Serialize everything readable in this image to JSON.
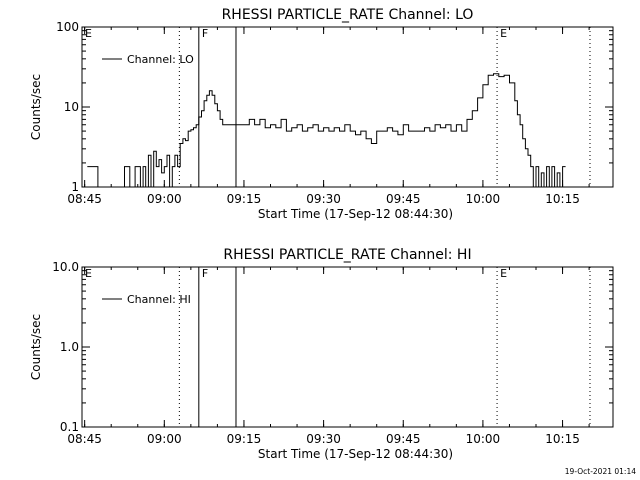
{
  "chart_data": [
    {
      "type": "line",
      "title": "RHESSI PARTICLE_RATE Channel: LO",
      "xlabel": "Start Time (17-Sep-12 08:44:30)",
      "ylabel": "Counts/sec",
      "yscale": "log",
      "ylim": [
        1,
        100
      ],
      "xlim": [
        "08:44:30",
        "10:24:30"
      ],
      "x_ticks": [
        "08:45",
        "09:00",
        "09:15",
        "09:30",
        "09:45",
        "10:00",
        "10:15"
      ],
      "y_ticks": [
        "1",
        "10",
        "100"
      ],
      "legend": "Channel: LO",
      "legend_position": "top-left",
      "markers": [
        {
          "label": "E",
          "time": "08:44:30",
          "style": "dotted"
        },
        {
          "label": "F",
          "time": "09:06:30",
          "style": "solid"
        },
        {
          "label": "",
          "time": "09:13:30",
          "style": "solid"
        },
        {
          "label": "",
          "time": "09:02:50",
          "style": "dotted"
        },
        {
          "label": "E",
          "time": "10:02:40",
          "style": "dotted"
        },
        {
          "label": "",
          "time": "10:20:10",
          "style": "dotted"
        }
      ],
      "x": [
        "08:45:30",
        "08:46:30",
        "08:47:30",
        "08:48:30",
        "08:50:00",
        "08:51:30",
        "08:52:30",
        "08:53:30",
        "08:54:30",
        "08:55:30",
        "08:56:00",
        "08:56:30",
        "08:57:00",
        "08:57:30",
        "08:58:00",
        "08:58:30",
        "08:59:00",
        "08:59:30",
        "09:00:00",
        "09:00:30",
        "09:01:00",
        "09:01:30",
        "09:02:00",
        "09:02:30",
        "09:03:00",
        "09:03:30",
        "09:04:00",
        "09:04:30",
        "09:05:00",
        "09:05:30",
        "09:06:00",
        "09:06:30",
        "09:07:00",
        "09:07:30",
        "09:08:00",
        "09:08:30",
        "09:09:00",
        "09:09:30",
        "09:10:00",
        "09:10:30",
        "09:11:00",
        "09:11:30",
        "09:12:00",
        "09:13:00",
        "09:14:00",
        "09:15:00",
        "09:16:00",
        "09:17:00",
        "09:18:00",
        "09:19:00",
        "09:20:00",
        "09:21:00",
        "09:22:00",
        "09:23:00",
        "09:24:00",
        "09:25:00",
        "09:26:00",
        "09:27:00",
        "09:28:00",
        "09:29:00",
        "09:30:00",
        "09:31:00",
        "09:32:00",
        "09:33:00",
        "09:34:00",
        "09:35:00",
        "09:36:00",
        "09:37:00",
        "09:38:00",
        "09:39:00",
        "09:40:00",
        "09:41:00",
        "09:42:00",
        "09:43:00",
        "09:44:00",
        "09:45:00",
        "09:46:00",
        "09:47:00",
        "09:48:00",
        "09:49:00",
        "09:50:00",
        "09:51:00",
        "09:52:00",
        "09:53:00",
        "09:54:00",
        "09:55:00",
        "09:56:00",
        "09:57:00",
        "09:58:00",
        "09:59:00",
        "10:00:00",
        "10:01:00",
        "10:02:00",
        "10:03:00",
        "10:04:00",
        "10:05:00",
        "10:06:00",
        "10:06:30",
        "10:07:00",
        "10:07:30",
        "10:08:00",
        "10:08:30",
        "10:09:00",
        "10:09:30",
        "10:10:00",
        "10:10:30",
        "10:11:00",
        "10:11:30",
        "10:12:00",
        "10:12:30",
        "10:13:00",
        "10:13:30",
        "10:14:00",
        "10:14:30",
        "10:15:00"
      ],
      "values": [
        1.8,
        1.8,
        1,
        1,
        1,
        1,
        1.8,
        1,
        1.8,
        1,
        1.8,
        1,
        2.5,
        1,
        2.8,
        1.8,
        2.2,
        1.5,
        1.8,
        2.5,
        1,
        1.8,
        2.5,
        1.8,
        3.5,
        4,
        3.8,
        5,
        5.2,
        5.5,
        6,
        7.5,
        9,
        12,
        14,
        16,
        14,
        11,
        9,
        7,
        6,
        6,
        6,
        6,
        6,
        6,
        7,
        6,
        7,
        5.5,
        6,
        5.5,
        7,
        5,
        5.5,
        6,
        5,
        5.5,
        6,
        5,
        5.5,
        5,
        5.5,
        5,
        6,
        5,
        4.5,
        5,
        4,
        3.5,
        5,
        5,
        5.5,
        5,
        4.5,
        6,
        5,
        5,
        5,
        5.5,
        5,
        6,
        5.5,
        6,
        5,
        6,
        5,
        7,
        9,
        13,
        19,
        25,
        26,
        24,
        25,
        20,
        12,
        8,
        6,
        4,
        3,
        2.5,
        1.8,
        1,
        1.8,
        1,
        1.5,
        1,
        1.8,
        1,
        1.8,
        1,
        1.5,
        1,
        1.8
      ]
    },
    {
      "type": "line",
      "title": "RHESSI PARTICLE_RATE Channel: HI",
      "xlabel": "Start Time (17-Sep-12 08:44:30)",
      "ylabel": "Counts/sec",
      "yscale": "log",
      "ylim": [
        0.1,
        10
      ],
      "xlim": [
        "08:44:30",
        "10:24:30"
      ],
      "x_ticks": [
        "08:45",
        "09:00",
        "09:15",
        "09:30",
        "09:45",
        "10:00",
        "10:15"
      ],
      "y_ticks": [
        "0.1",
        "1.0",
        "10.0"
      ],
      "legend": "Channel: HI",
      "legend_position": "top-left",
      "markers": [
        {
          "label": "E",
          "time": "08:44:30",
          "style": "dotted"
        },
        {
          "label": "F",
          "time": "09:06:30",
          "style": "solid"
        },
        {
          "label": "",
          "time": "09:13:30",
          "style": "solid"
        },
        {
          "label": "",
          "time": "09:02:50",
          "style": "dotted"
        },
        {
          "label": "E",
          "time": "10:02:40",
          "style": "dotted"
        },
        {
          "label": "",
          "time": "10:20:10",
          "style": "dotted"
        }
      ],
      "x": [],
      "values": []
    }
  ],
  "footer": {
    "timestamp": "19-Oct-2021 01:14"
  }
}
